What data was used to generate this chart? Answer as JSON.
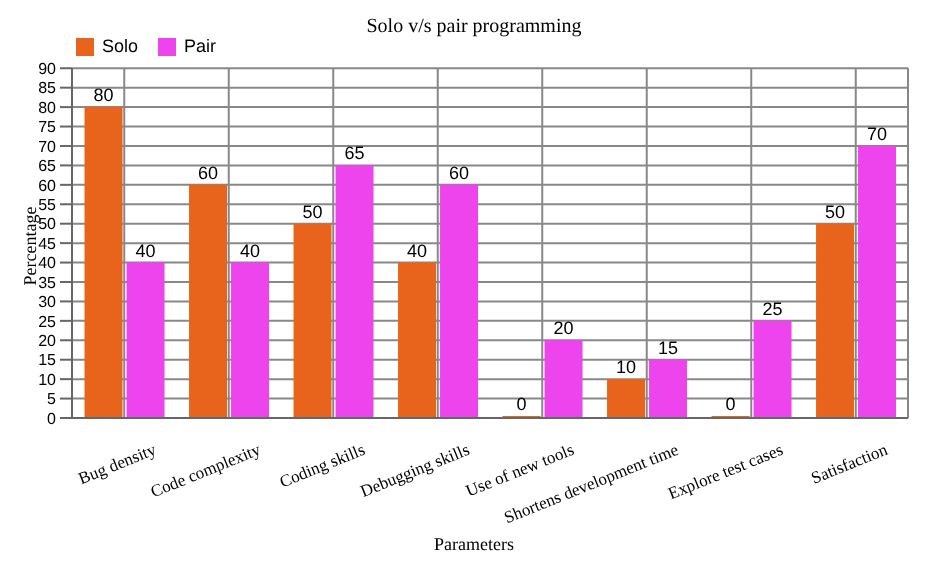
{
  "chart_data": {
    "type": "bar",
    "title": "Solo v/s pair programming",
    "xlabel": "Parameters",
    "ylabel": "Percentage",
    "categories": [
      "Bug density",
      "Code complexity",
      "Coding skills",
      "Debugging skills",
      "Use of new tools",
      "Shortens development time",
      "Explore test cases",
      "Satisfaction"
    ],
    "series": [
      {
        "name": "Solo",
        "color": "#e8641c",
        "values": [
          80,
          60,
          50,
          40,
          0,
          10,
          0,
          50
        ]
      },
      {
        "name": "Pair",
        "color": "#ee44ee",
        "values": [
          40,
          40,
          65,
          60,
          20,
          15,
          25,
          70
        ]
      }
    ],
    "ylim": [
      0,
      90
    ],
    "yticks": [
      0,
      5,
      10,
      15,
      20,
      25,
      30,
      35,
      40,
      45,
      50,
      55,
      60,
      65,
      70,
      75,
      80,
      85,
      90
    ],
    "grid": true,
    "legend": "top left",
    "data_labels": true
  }
}
